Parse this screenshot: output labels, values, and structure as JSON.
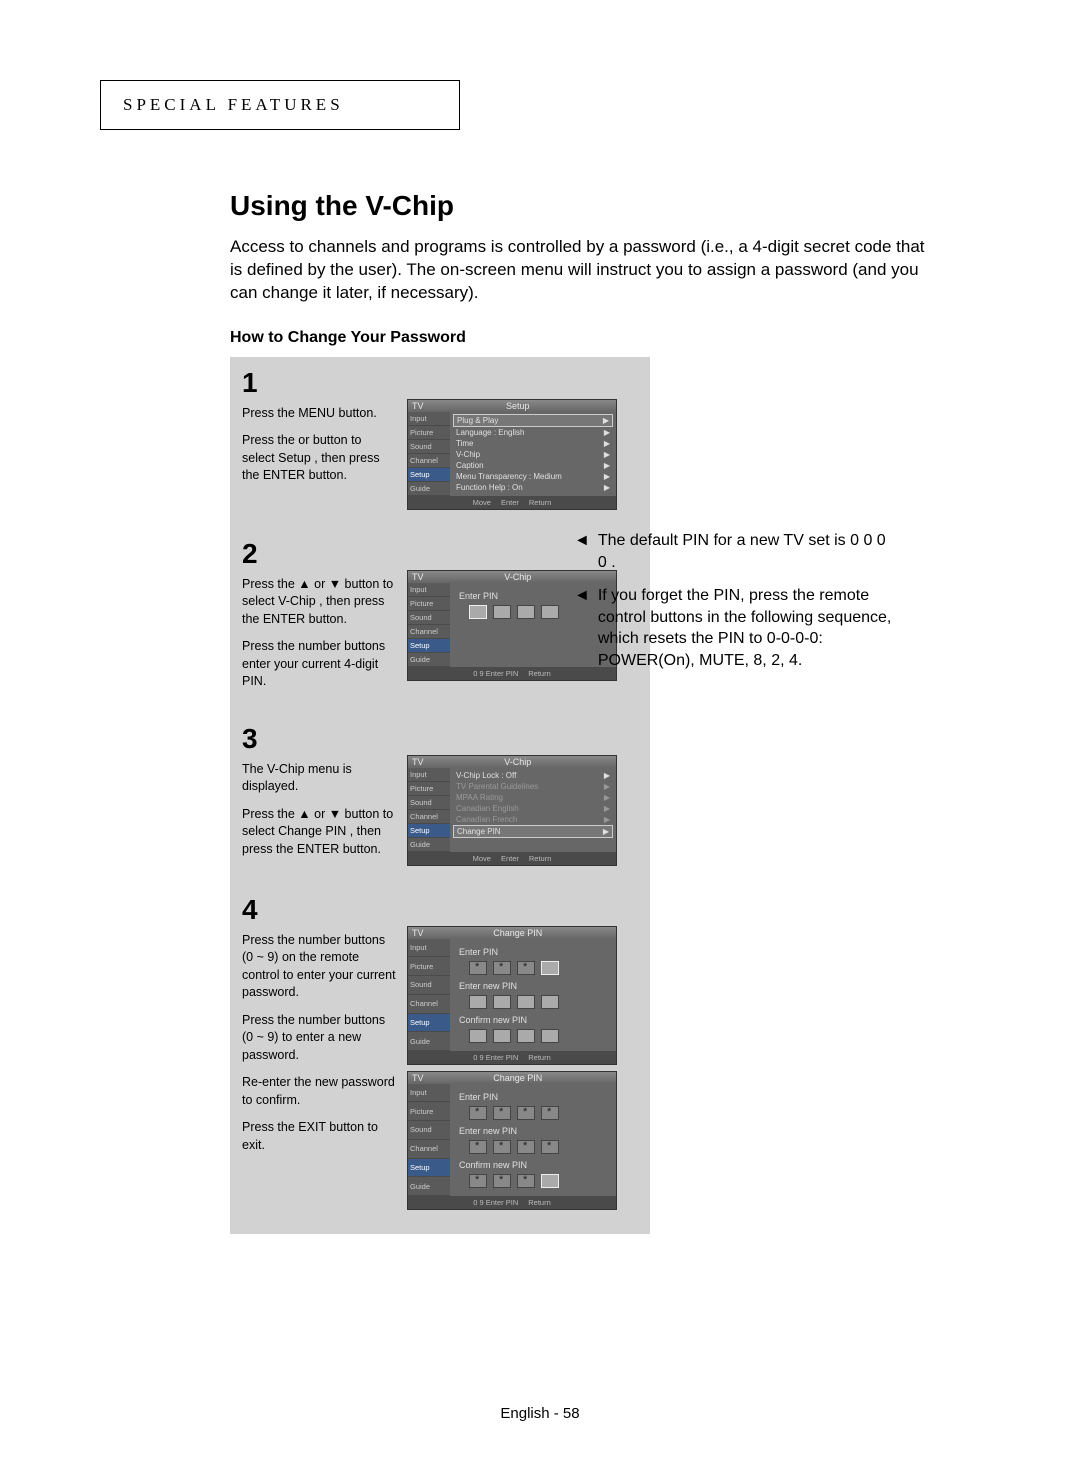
{
  "header": {
    "label": "SPECIAL FEATURES"
  },
  "title": "Using the V-Chip",
  "intro": "Access to channels and programs is controlled by a password (i.e., a 4-digit secret code that is defined by the user). The on-screen menu will instruct you to assign a password (and you can change it later, if necessary).",
  "subhead": "How to Change Your Password",
  "sidebar": {
    "items": [
      "Input",
      "Picture",
      "Sound",
      "Channel",
      "Setup",
      "Guide"
    ]
  },
  "steps": [
    {
      "num": "1",
      "text": [
        "Press the MENU button.",
        "Press the  or  button to select  Setup , then press the ENTER button."
      ],
      "osd": {
        "titleLeft": "TV",
        "titleCenter": "Setup",
        "sideSel": 4,
        "rows": [
          {
            "label": "Plug & Play",
            "val": "",
            "boxed": true
          },
          {
            "label": "Language",
            "val": ": English"
          },
          {
            "label": "Time",
            "val": ""
          },
          {
            "label": "V-Chip",
            "val": ""
          },
          {
            "label": "Caption",
            "val": ""
          },
          {
            "label": "Menu Transparency",
            "val": ": Medium"
          },
          {
            "label": "Function Help",
            "val": ": On"
          }
        ],
        "footer": [
          "Move",
          "Enter",
          "Return"
        ]
      }
    },
    {
      "num": "2",
      "text": [
        "Press the ▲ or ▼ button to select  V-Chip , then press the ENTER button.",
        "Press the number buttons enter your current 4-digit PIN."
      ],
      "osd": {
        "titleLeft": "TV",
        "titleCenter": "V-Chip",
        "sideSel": 4,
        "pinSections": [
          {
            "label": "Enter PIN",
            "cells": [
              "sel",
              "",
              "",
              ""
            ]
          }
        ],
        "footer": [
          "0 9 Enter PIN",
          "Return"
        ]
      }
    },
    {
      "num": "3",
      "text": [
        "The  V-Chip  menu is displayed.",
        "Press the ▲ or ▼ button to select  Change PIN , then press the ENTER button."
      ],
      "osd": {
        "titleLeft": "TV",
        "titleCenter": "V-Chip",
        "sideSel": 4,
        "rows": [
          {
            "label": "V-Chip Lock",
            "val": ": Off"
          },
          {
            "label": "TV Parental Guidelines",
            "val": "",
            "dim": true
          },
          {
            "label": "MPAA Rating",
            "val": "",
            "dim": true
          },
          {
            "label": "Canadian English",
            "val": "",
            "dim": true
          },
          {
            "label": "Canadian French",
            "val": "",
            "dim": true
          },
          {
            "label": "Change PIN",
            "val": "",
            "boxed": true
          }
        ],
        "footer": [
          "Move",
          "Enter",
          "Return"
        ]
      }
    },
    {
      "num": "4",
      "text": [
        "Press the number buttons (0 ~ 9) on the remote control to enter your current password.",
        "Press the number buttons (0 ~ 9) to enter a new password.",
        "Re-enter the new password to confirm.",
        "Press the EXIT button to exit."
      ],
      "osdA": {
        "titleLeft": "TV",
        "titleCenter": "Change PIN",
        "sideSel": 4,
        "pinSections": [
          {
            "label": "Enter PIN",
            "cells": [
              "filled",
              "filled",
              "filled",
              "sel"
            ]
          },
          {
            "label": "Enter new PIN",
            "cells": [
              "",
              "",
              "",
              ""
            ]
          },
          {
            "label": "Confirm new PIN",
            "cells": [
              "",
              "",
              "",
              ""
            ]
          }
        ],
        "footer": [
          "0 9 Enter PIN",
          "Return"
        ]
      },
      "osdB": {
        "titleLeft": "TV",
        "titleCenter": "Change PIN",
        "sideSel": 4,
        "pinSections": [
          {
            "label": "Enter PIN",
            "cells": [
              "filled",
              "filled",
              "filled",
              "filled"
            ]
          },
          {
            "label": "Enter new PIN",
            "cells": [
              "filled",
              "filled",
              "filled",
              "filled"
            ]
          },
          {
            "label": "Confirm new PIN",
            "cells": [
              "filled",
              "filled",
              "filled",
              "sel"
            ]
          }
        ],
        "footer": [
          "0 9 Enter PIN",
          "Return"
        ]
      }
    }
  ],
  "notes": [
    "The default PIN for a new TV set is  0 0 0 0 .",
    "If you forget the PIN, press the remote control buttons in the following sequence, which resets the PIN to 0-0-0-0: POWER(On), MUTE, 8, 2, 4."
  ],
  "footer": "English - 58",
  "glyphs": {
    "tri": "◄",
    "rarrow": "▶"
  }
}
